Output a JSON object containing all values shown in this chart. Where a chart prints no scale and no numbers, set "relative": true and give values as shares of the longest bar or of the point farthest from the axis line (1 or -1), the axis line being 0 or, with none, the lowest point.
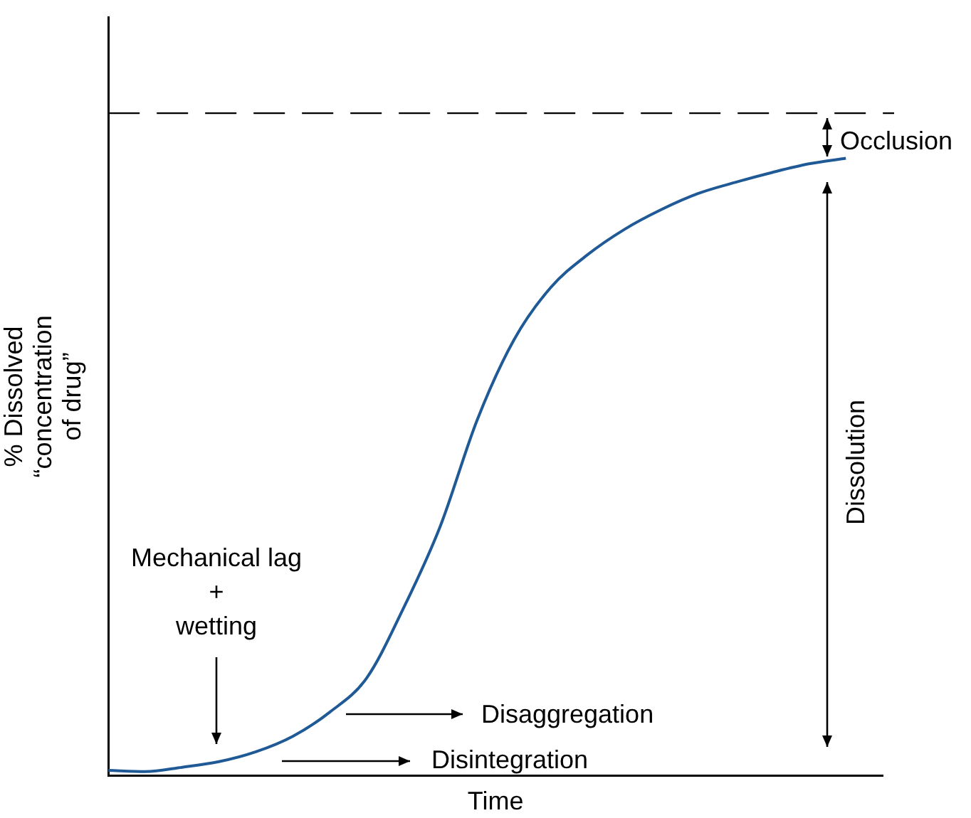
{
  "chart_data": {
    "type": "line",
    "relative": true,
    "xlabel": "Time",
    "ylabel": "% Dissolved\n“concentration\nof drug”",
    "categories": [
      null,
      null,
      null,
      null,
      null,
      null,
      null,
      null,
      null,
      null,
      null,
      null,
      null,
      null,
      null,
      null,
      null,
      null,
      null,
      null,
      null,
      null
    ],
    "series": [
      {
        "color": "#1f5a96",
        "values": [
          0.009,
          0.007,
          0.014,
          0.023,
          0.039,
          0.064,
          0.103,
          0.158,
          0.271,
          0.404,
          0.576,
          0.706,
          0.791,
          0.844,
          0.885,
          0.917,
          0.943,
          0.961,
          0.977,
          0.991,
          1,
          null
        ]
      }
    ],
    "ref_lines": [
      {
        "axis": "y",
        "value": 1.073,
        "color": "#000000",
        "line_style": "dashed"
      }
    ],
    "annotations": [
      "Mechanical lag\n+\nwetting",
      "Disaggregation",
      "Disintegration",
      "Dissolution",
      "Occlusion"
    ],
    "marker": "none",
    "line_style": "solid",
    "grid": false,
    "legend": false
  }
}
